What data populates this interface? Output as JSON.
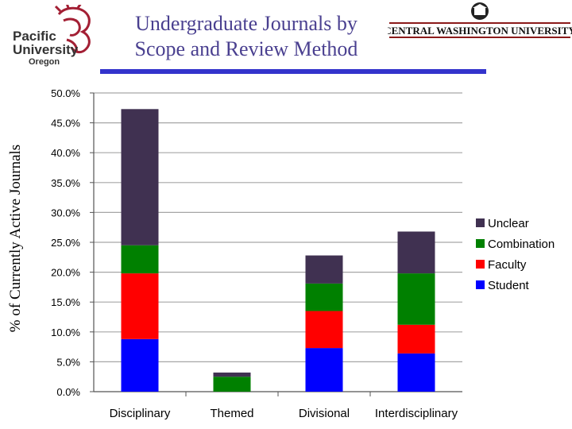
{
  "header": {
    "title_line1": "Undergraduate Journals by",
    "title_line2": "Scope and Review Method",
    "left_logo": {
      "line1": "Pacific",
      "line2": "University",
      "line3": "Oregon",
      "icon": "boxer-mascot-icon"
    },
    "right_logo": {
      "text": "CENTRAL WASHINGTON UNIVERSITY",
      "icon": "building-seal-icon",
      "accent_color": "#8b1a1a"
    }
  },
  "chart_data": {
    "type": "bar",
    "stacked": true,
    "categories": [
      "Disciplinary",
      "Themed",
      "Divisional",
      "Interdisciplinary"
    ],
    "series": [
      {
        "name": "Student",
        "color": "#0000ff",
        "values": [
          8.8,
          0.0,
          7.3,
          6.4
        ]
      },
      {
        "name": "Faculty",
        "color": "#ff0000",
        "values": [
          11.0,
          0.0,
          6.2,
          4.8
        ]
      },
      {
        "name": "Combination",
        "color": "#008000",
        "values": [
          4.7,
          2.5,
          4.6,
          8.6
        ]
      },
      {
        "name": "Unclear",
        "color": "#403151",
        "values": [
          22.8,
          0.7,
          4.7,
          7.0
        ]
      }
    ],
    "ylabel": "% of Currently Active Journals",
    "xlabel": "",
    "ylim": [
      0,
      50
    ],
    "yticks": [
      "0.0%",
      "5.0%",
      "10.0%",
      "15.0%",
      "20.0%",
      "25.0%",
      "30.0%",
      "35.0%",
      "40.0%",
      "45.0%",
      "50.0%"
    ],
    "grid": true,
    "legend": {
      "position": "right",
      "order": [
        "Unclear",
        "Combination",
        "Faculty",
        "Student"
      ]
    }
  }
}
